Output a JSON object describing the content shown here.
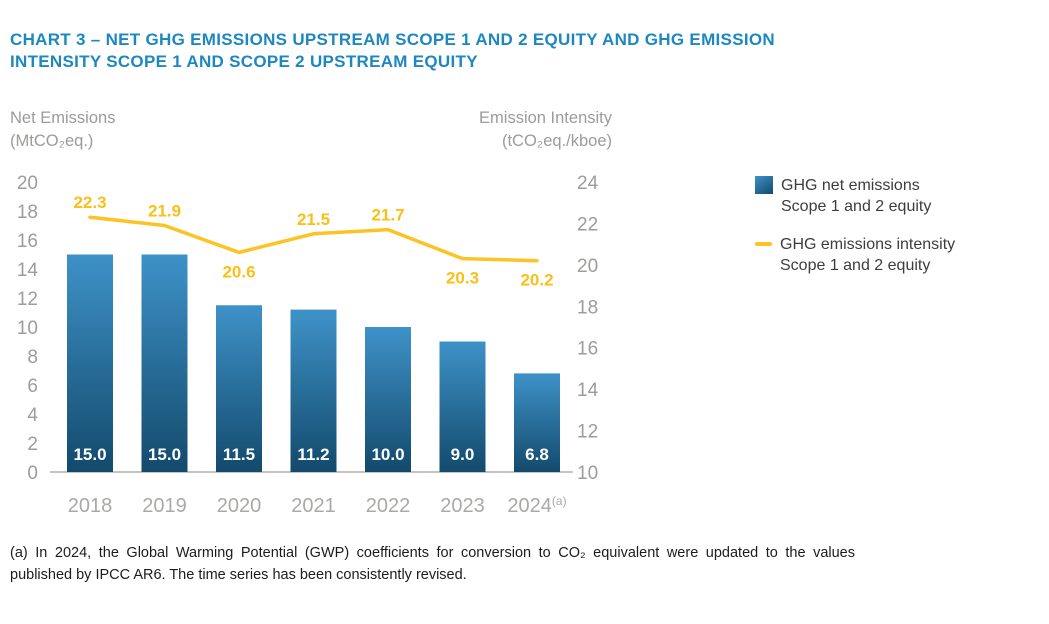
{
  "header": {
    "title_lines": [
      "CHART 3 – NET GHG EMISSIONS UPSTREAM SCOPE 1 AND 2 EQUITY AND GHG EMISSION",
      "INTENSITY SCOPE 1 AND SCOPE 2 UPSTREAM EQUITY"
    ],
    "title_color": "#1d88c0"
  },
  "chart_data": {
    "type": "bar+line combo",
    "grid": false,
    "legend_position": "right",
    "categories": [
      {
        "label": "2018",
        "sup": ""
      },
      {
        "label": "2019",
        "sup": ""
      },
      {
        "label": "2020",
        "sup": ""
      },
      {
        "label": "2021",
        "sup": ""
      },
      {
        "label": "2022",
        "sup": ""
      },
      {
        "label": "2023",
        "sup": ""
      },
      {
        "label": "2024",
        "sup": "(a)"
      }
    ],
    "series": [
      {
        "name": "GHG net emissions Scope 1 and 2 equity",
        "type": "bar",
        "axis": "left",
        "values": [
          15.0,
          15.0,
          11.5,
          11.2,
          10.0,
          9.0,
          6.8
        ],
        "bar_gradient_top": "#3e92c8",
        "bar_gradient_bottom": "#134a6c",
        "value_label_color": "#ffffff"
      },
      {
        "name": "GHG emissions intensity Scope 1 and 2 equity",
        "type": "line",
        "axis": "right",
        "values": [
          22.3,
          21.9,
          20.6,
          21.5,
          21.7,
          20.3,
          20.2
        ],
        "color": "#fdc324",
        "label_color": "#fbbf17",
        "label_positions": [
          "above",
          "above",
          "below",
          "above",
          "above",
          "below",
          "below"
        ]
      }
    ],
    "left_axis": {
      "title": "Net Emissions",
      "unit": "(MtCO₂eq.)",
      "min": 0,
      "max": 20,
      "step": 2
    },
    "right_axis": {
      "title": "Emission Intensity",
      "unit": "(tCO₂eq./kboe)",
      "min": 10,
      "max": 24,
      "step": 2
    }
  },
  "legend": {
    "items": [
      {
        "swatch": "bar-square",
        "lines": [
          "GHG net emissions",
          "Scope 1 and 2 equity"
        ]
      },
      {
        "swatch": "line-dash",
        "lines": [
          "GHG emissions intensity",
          "Scope 1 and 2 equity"
        ]
      }
    ]
  },
  "footnote": {
    "text": "(a) In 2024, the Global Warming Potential (GWP) coefficients for conversion to CO₂ equivalent were updated to the values published by IPCC AR6. The time series has been consistently revised."
  }
}
